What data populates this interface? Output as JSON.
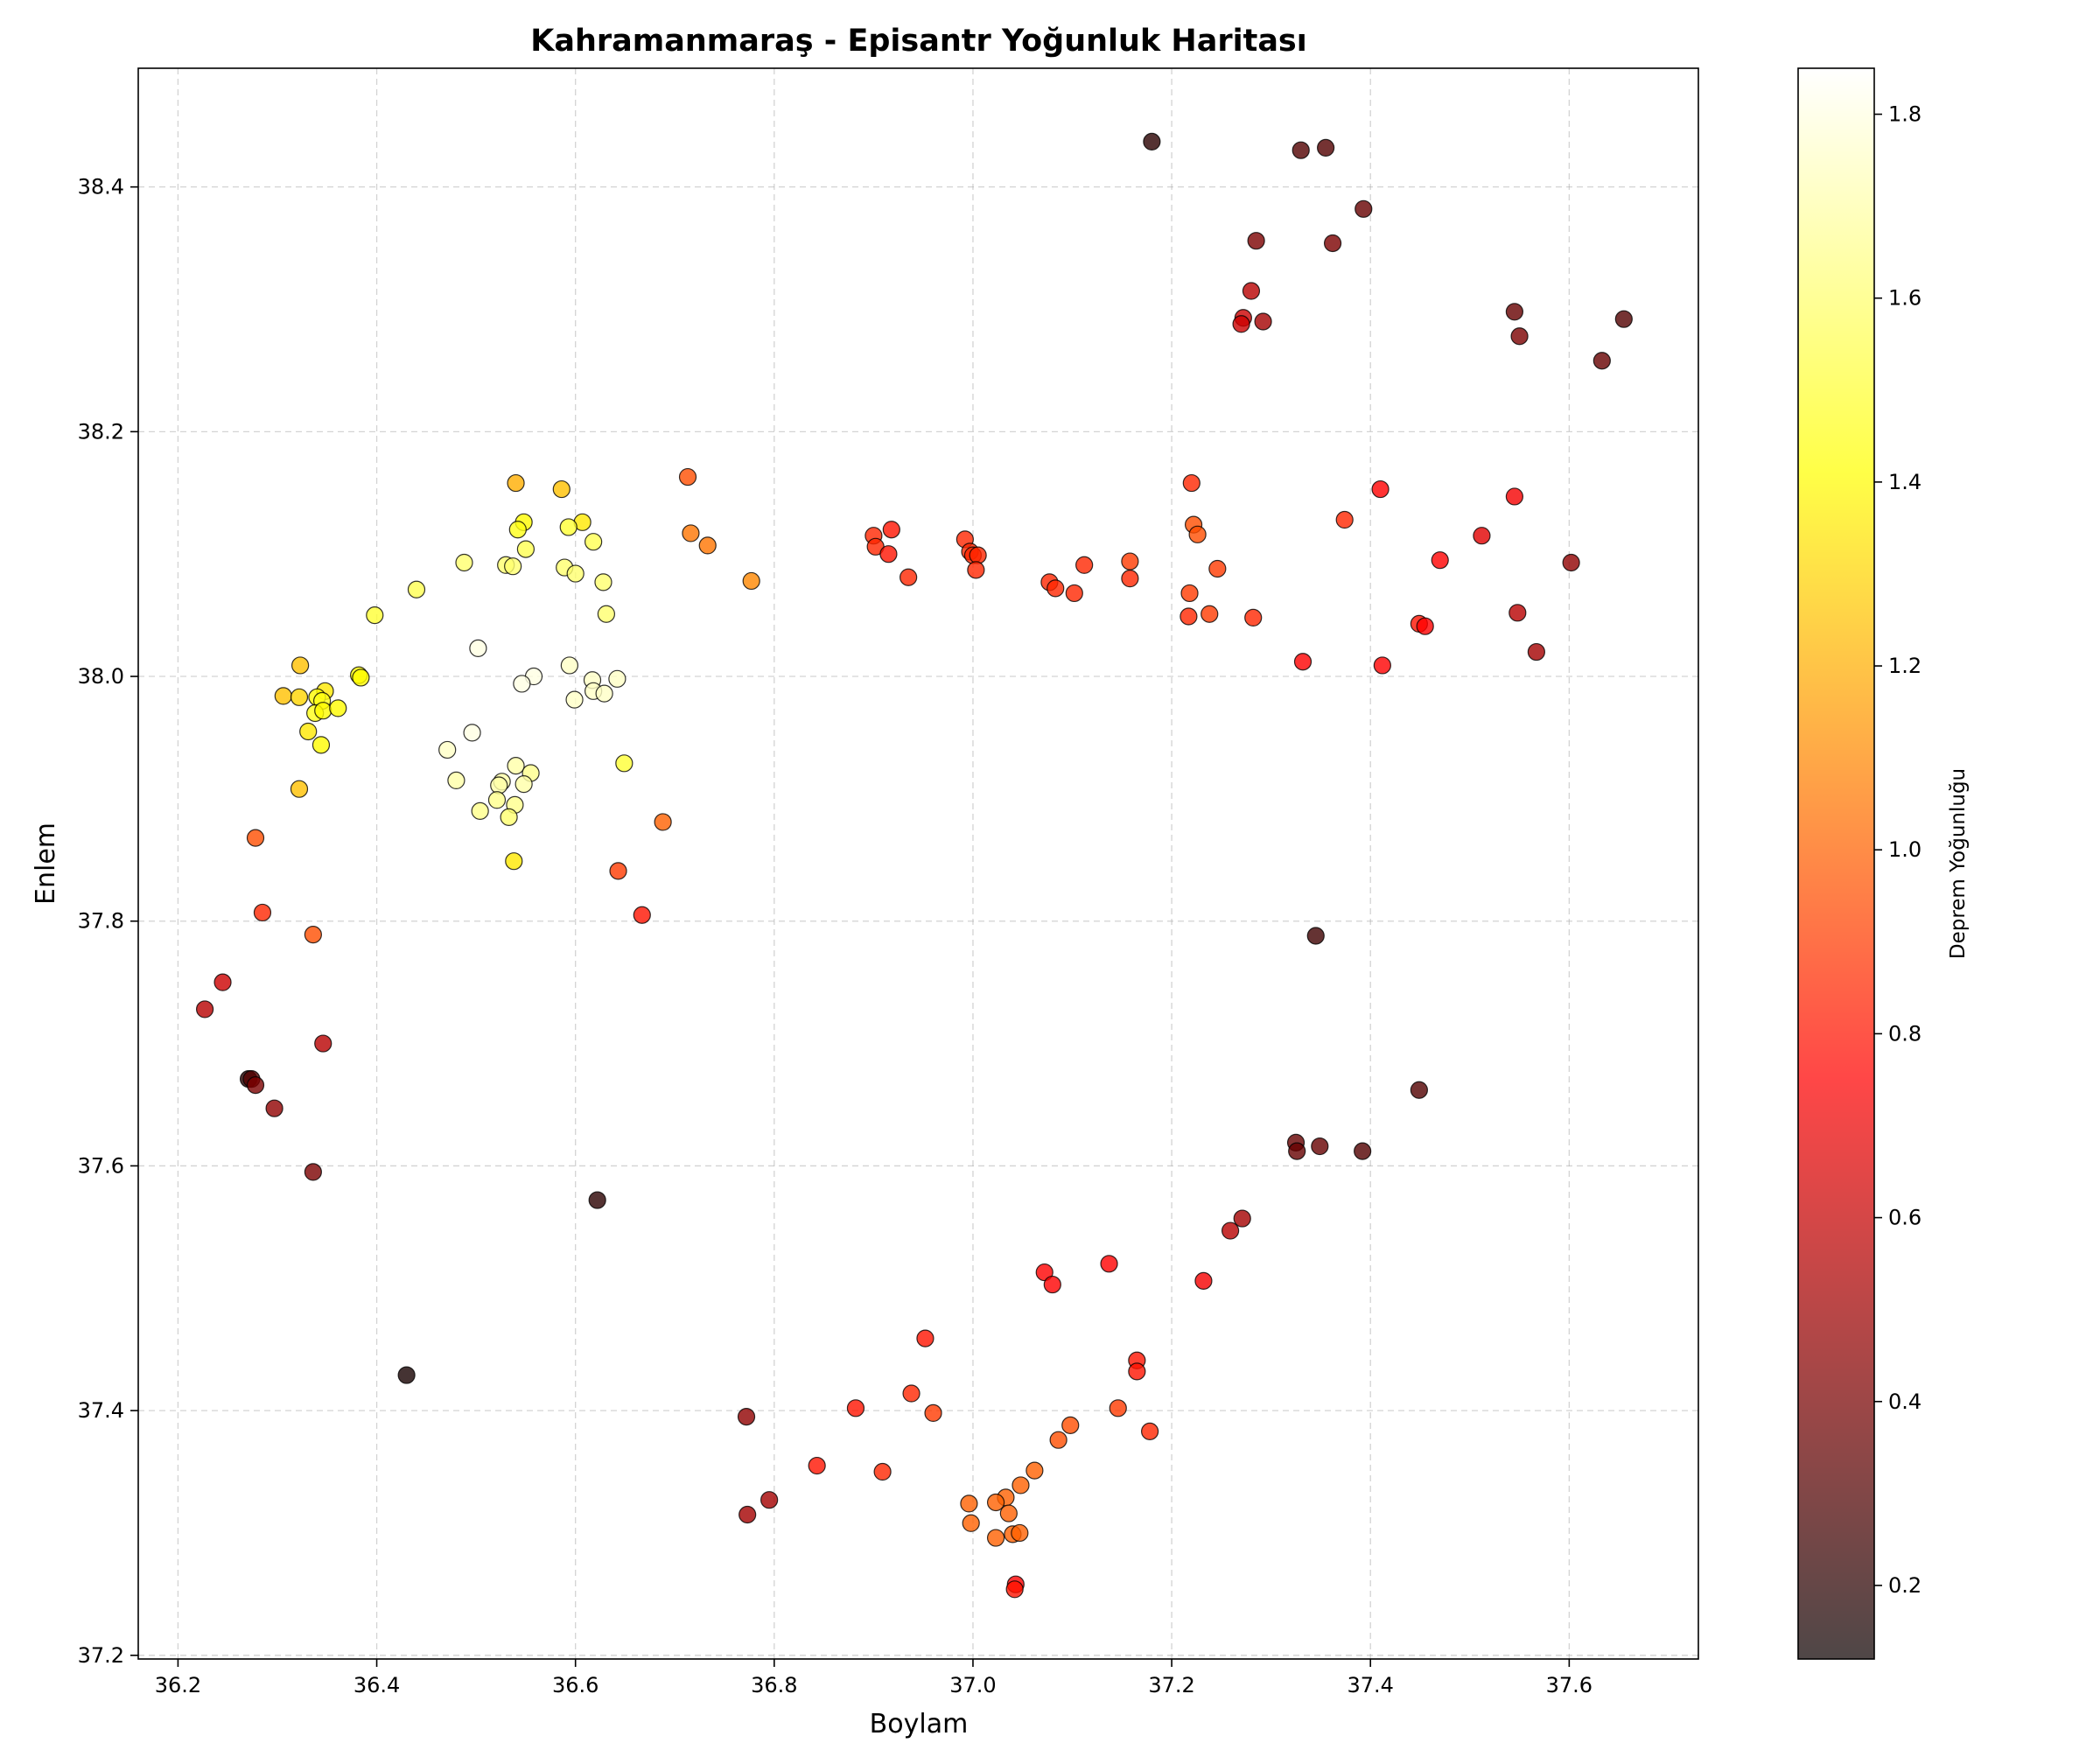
{
  "chart_data": {
    "type": "scatter",
    "title": "Kahramanmaraş - Episantr Yoğunluk Haritası",
    "xlabel": "Boylam",
    "ylabel": "Enlem",
    "colorbar_label": "Deprem Yoğunluğu",
    "colormap": "hot",
    "grid": true,
    "xlim": [
      36.16,
      37.73
    ],
    "ylim": [
      37.197,
      38.497
    ],
    "xticks": [
      36.2,
      36.4,
      36.6,
      36.8,
      37.0,
      37.2,
      37.4,
      37.6
    ],
    "xtick_labels": [
      "36.2",
      "36.4",
      "36.6",
      "36.8",
      "37.0",
      "37.2",
      "37.4",
      "37.6"
    ],
    "yticks": [
      37.2,
      37.4,
      37.6,
      37.8,
      38.0,
      38.2,
      38.4
    ],
    "ytick_labels": [
      "37.2",
      "37.4",
      "37.6",
      "37.8",
      "38.0",
      "38.2",
      "38.4"
    ],
    "clim": [
      0.12,
      1.85
    ],
    "cticks": [
      0.2,
      0.4,
      0.6,
      0.8,
      1.0,
      1.2,
      1.4,
      1.6,
      1.8
    ],
    "ctick_labels": [
      "0.2",
      "0.4",
      "0.6",
      "0.8",
      "1.0",
      "1.2",
      "1.4",
      "1.6",
      "1.8"
    ],
    "points": [
      [
        37.18,
        38.437,
        0.2
      ],
      [
        37.33,
        38.43,
        0.3
      ],
      [
        37.355,
        38.432,
        0.3
      ],
      [
        37.393,
        38.382,
        0.35
      ],
      [
        37.285,
        38.356,
        0.4
      ],
      [
        37.362,
        38.354,
        0.4
      ],
      [
        37.28,
        38.315,
        0.55
      ],
      [
        37.272,
        38.293,
        0.6
      ],
      [
        37.27,
        38.288,
        0.6
      ],
      [
        37.292,
        38.29,
        0.5
      ],
      [
        37.545,
        38.298,
        0.35
      ],
      [
        37.55,
        38.278,
        0.4
      ],
      [
        37.655,
        38.292,
        0.3
      ],
      [
        37.633,
        38.258,
        0.35
      ],
      [
        37.22,
        38.158,
        0.85
      ],
      [
        37.222,
        38.124,
        0.95
      ],
      [
        37.226,
        38.116,
        0.95
      ],
      [
        37.41,
        38.153,
        0.75
      ],
      [
        37.374,
        38.128,
        0.85
      ],
      [
        37.545,
        38.147,
        0.7
      ],
      [
        37.512,
        38.115,
        0.65
      ],
      [
        37.47,
        38.095,
        0.75
      ],
      [
        37.246,
        38.088,
        0.9
      ],
      [
        37.218,
        38.068,
        0.9
      ],
      [
        37.217,
        38.049,
        0.85
      ],
      [
        37.238,
        38.051,
        0.9
      ],
      [
        37.282,
        38.048,
        0.85
      ],
      [
        37.449,
        38.043,
        0.8
      ],
      [
        37.455,
        38.041,
        0.75
      ],
      [
        37.332,
        38.012,
        0.75
      ],
      [
        37.412,
        38.009,
        0.75
      ],
      [
        37.548,
        38.052,
        0.55
      ],
      [
        37.567,
        38.02,
        0.5
      ],
      [
        37.602,
        38.093,
        0.45
      ],
      [
        36.9,
        38.115,
        0.85
      ],
      [
        36.902,
        38.106,
        0.85
      ],
      [
        36.918,
        38.12,
        0.8
      ],
      [
        36.915,
        38.1,
        0.8
      ],
      [
        36.935,
        38.081,
        0.85
      ],
      [
        36.992,
        38.112,
        0.85
      ],
      [
        36.997,
        38.102,
        0.85
      ],
      [
        37.0,
        38.099,
        0.85
      ],
      [
        37.005,
        38.099,
        0.85
      ],
      [
        37.003,
        38.087,
        0.85
      ],
      [
        37.077,
        38.077,
        0.85
      ],
      [
        37.083,
        38.072,
        0.85
      ],
      [
        37.102,
        38.068,
        0.85
      ],
      [
        37.112,
        38.091,
        0.85
      ],
      [
        37.158,
        38.094,
        0.9
      ],
      [
        37.158,
        38.08,
        0.85
      ],
      [
        36.713,
        38.163,
        0.95
      ],
      [
        36.716,
        38.117,
        1.05
      ],
      [
        36.733,
        38.107,
        1.05
      ],
      [
        36.777,
        38.078,
        1.1
      ],
      [
        36.54,
        38.158,
        1.2
      ],
      [
        36.586,
        38.153,
        1.25
      ],
      [
        36.607,
        38.126,
        1.35
      ],
      [
        36.548,
        38.126,
        1.4
      ],
      [
        36.542,
        38.12,
        1.45
      ],
      [
        36.593,
        38.122,
        1.5
      ],
      [
        36.618,
        38.11,
        1.55
      ],
      [
        36.55,
        38.104,
        1.55
      ],
      [
        36.488,
        38.093,
        1.6
      ],
      [
        36.53,
        38.091,
        1.6
      ],
      [
        36.537,
        38.09,
        1.6
      ],
      [
        36.589,
        38.089,
        1.6
      ],
      [
        36.6,
        38.084,
        1.6
      ],
      [
        36.628,
        38.077,
        1.6
      ],
      [
        36.44,
        38.071,
        1.55
      ],
      [
        36.398,
        38.05,
        1.5
      ],
      [
        36.631,
        38.051,
        1.6
      ],
      [
        36.502,
        38.023,
        1.8
      ],
      [
        36.594,
        38.009,
        1.75
      ],
      [
        36.558,
        38.0,
        1.8
      ],
      [
        36.642,
        37.998,
        1.75
      ],
      [
        36.617,
        37.997,
        1.75
      ],
      [
        36.546,
        37.994,
        1.8
      ],
      [
        36.618,
        37.988,
        1.75
      ],
      [
        36.629,
        37.986,
        1.75
      ],
      [
        36.599,
        37.981,
        1.75
      ],
      [
        36.496,
        37.954,
        1.8
      ],
      [
        36.471,
        37.94,
        1.75
      ],
      [
        36.48,
        37.915,
        1.7
      ],
      [
        36.54,
        37.927,
        1.7
      ],
      [
        36.555,
        37.921,
        1.65
      ],
      [
        36.526,
        37.914,
        1.7
      ],
      [
        36.548,
        37.912,
        1.7
      ],
      [
        36.523,
        37.911,
        1.7
      ],
      [
        36.521,
        37.899,
        1.65
      ],
      [
        36.539,
        37.895,
        1.65
      ],
      [
        36.504,
        37.89,
        1.65
      ],
      [
        36.533,
        37.885,
        1.6
      ],
      [
        36.649,
        37.929,
        1.5
      ],
      [
        36.538,
        37.849,
        1.35
      ],
      [
        36.323,
        38.009,
        1.25
      ],
      [
        36.306,
        37.984,
        1.25
      ],
      [
        36.322,
        37.983,
        1.3
      ],
      [
        36.348,
        37.988,
        1.35
      ],
      [
        36.34,
        37.983,
        1.4
      ],
      [
        36.345,
        37.98,
        1.45
      ],
      [
        36.338,
        37.97,
        1.45
      ],
      [
        36.346,
        37.972,
        1.4
      ],
      [
        36.361,
        37.974,
        1.4
      ],
      [
        36.382,
        38.001,
        1.4
      ],
      [
        36.384,
        37.999,
        1.4
      ],
      [
        36.331,
        37.955,
        1.35
      ],
      [
        36.344,
        37.944,
        1.4
      ],
      [
        36.322,
        37.908,
        1.25
      ],
      [
        36.278,
        37.868,
        0.95
      ],
      [
        36.285,
        37.807,
        0.85
      ],
      [
        36.336,
        37.789,
        0.95
      ],
      [
        36.688,
        37.881,
        1.0
      ],
      [
        36.643,
        37.841,
        0.9
      ],
      [
        36.667,
        37.805,
        0.8
      ],
      [
        36.245,
        37.75,
        0.6
      ],
      [
        36.227,
        37.728,
        0.55
      ],
      [
        36.346,
        37.7,
        0.55
      ],
      [
        36.271,
        37.671,
        0.2
      ],
      [
        36.274,
        37.671,
        0.3
      ],
      [
        36.278,
        37.666,
        0.4
      ],
      [
        36.297,
        37.647,
        0.45
      ],
      [
        36.336,
        37.595,
        0.4
      ],
      [
        36.622,
        37.572,
        0.2
      ],
      [
        36.43,
        37.429,
        0.15
      ],
      [
        37.345,
        37.788,
        0.25
      ],
      [
        37.449,
        37.662,
        0.3
      ],
      [
        37.325,
        37.619,
        0.35
      ],
      [
        37.326,
        37.612,
        0.35
      ],
      [
        37.349,
        37.616,
        0.35
      ],
      [
        37.392,
        37.612,
        0.3
      ],
      [
        37.271,
        37.557,
        0.5
      ],
      [
        37.259,
        37.547,
        0.55
      ],
      [
        37.232,
        37.506,
        0.7
      ],
      [
        37.137,
        37.52,
        0.75
      ],
      [
        37.072,
        37.513,
        0.75
      ],
      [
        37.08,
        37.503,
        0.75
      ],
      [
        37.165,
        37.441,
        0.8
      ],
      [
        37.165,
        37.432,
        0.8
      ],
      [
        36.952,
        37.459,
        0.8
      ],
      [
        36.938,
        37.414,
        0.85
      ],
      [
        36.96,
        37.398,
        0.9
      ],
      [
        36.882,
        37.402,
        0.8
      ],
      [
        37.146,
        37.402,
        0.9
      ],
      [
        37.098,
        37.388,
        0.95
      ],
      [
        37.178,
        37.383,
        0.85
      ],
      [
        37.086,
        37.376,
        0.95
      ],
      [
        37.062,
        37.351,
        1.0
      ],
      [
        37.048,
        37.339,
        1.0
      ],
      [
        37.033,
        37.329,
        1.0
      ],
      [
        37.023,
        37.325,
        1.0
      ],
      [
        37.036,
        37.316,
        1.0
      ],
      [
        36.996,
        37.324,
        1.0
      ],
      [
        36.998,
        37.308,
        1.0
      ],
      [
        37.023,
        37.296,
        1.0
      ],
      [
        37.04,
        37.299,
        1.0
      ],
      [
        37.047,
        37.3,
        1.0
      ],
      [
        36.909,
        37.35,
        0.85
      ],
      [
        36.843,
        37.355,
        0.8
      ],
      [
        36.772,
        37.395,
        0.45
      ],
      [
        36.795,
        37.327,
        0.5
      ],
      [
        36.773,
        37.315,
        0.5
      ],
      [
        37.043,
        37.258,
        0.75
      ],
      [
        37.042,
        37.254,
        0.8
      ]
    ]
  }
}
